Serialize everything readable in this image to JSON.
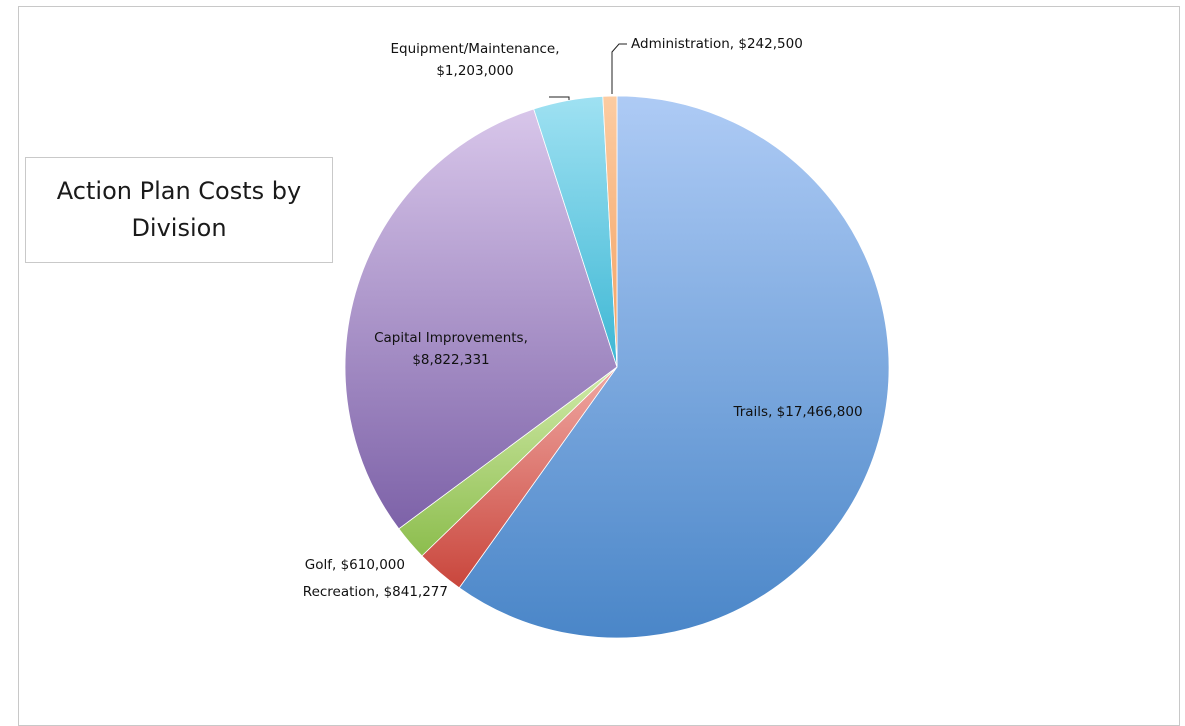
{
  "chart_data": {
    "type": "pie",
    "title": "Action Plan Costs by Division",
    "slices": [
      {
        "name": "Trails",
        "value": 17466800,
        "label": "Trails,  $17,466,800",
        "color_top": "#aecbf5",
        "color_bottom": "#4a86c8"
      },
      {
        "name": "Recreation",
        "value": 841277,
        "label": "Recreation,  $841,277",
        "color_top": "#f0a8a3",
        "color_bottom": "#c9463c"
      },
      {
        "name": "Golf",
        "value": 610000,
        "label": "Golf,  $610,000",
        "color_top": "#d1eaa9",
        "color_bottom": "#8cbd4d"
      },
      {
        "name": "Capital Improvements",
        "value": 8822331,
        "label_lines": [
          "Capital Improvements,",
          "$8,822,331"
        ],
        "color_top": "#d8c6ea",
        "color_bottom": "#7d62a8"
      },
      {
        "name": "Equipment/Maintenance",
        "value": 1203000,
        "label_lines": [
          "Equipment/Maintenance,",
          "$1,203,000"
        ],
        "color_top": "#9fe1f2",
        "color_bottom": "#3db7d4"
      },
      {
        "name": "Administration",
        "value": 242500,
        "label": "Administration,  $242,500",
        "color_top": "#fccca2",
        "color_bottom": "#f3a060"
      }
    ],
    "legend": "none",
    "data_labels": "outside and inside, category name and value"
  }
}
